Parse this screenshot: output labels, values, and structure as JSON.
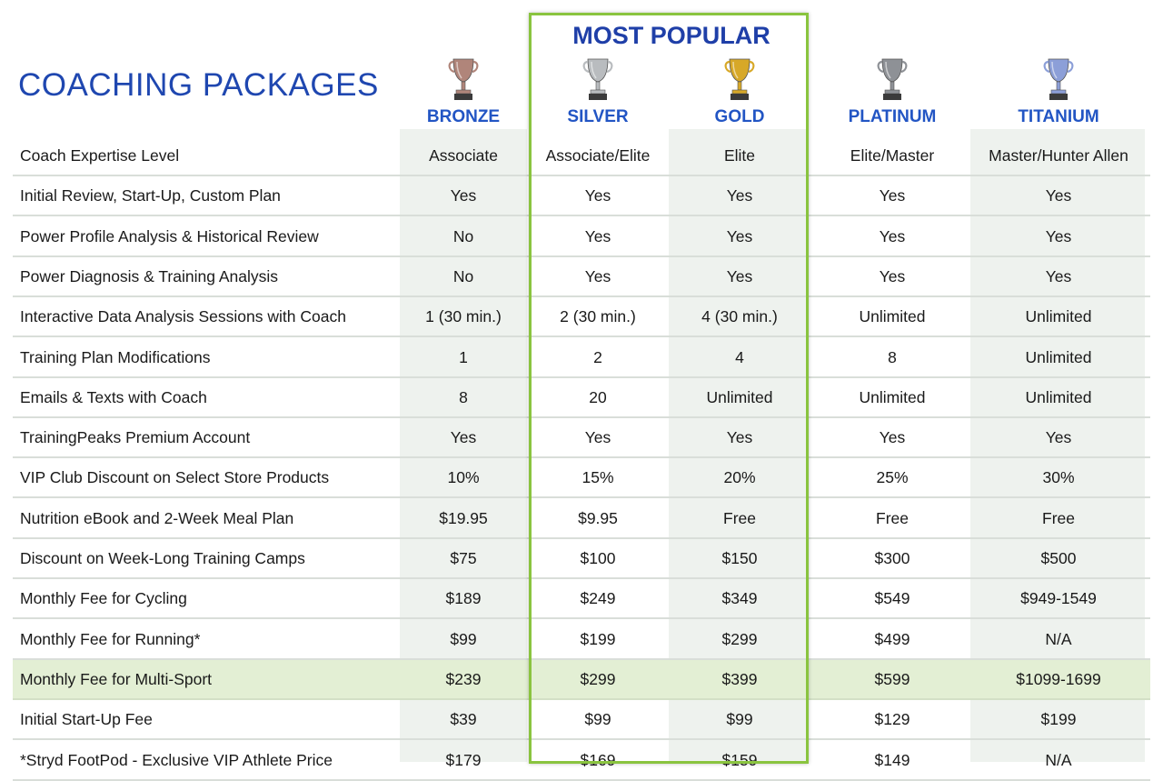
{
  "title": "COACHING PACKAGES",
  "most_popular": "MOST POPULAR",
  "colors": {
    "title": "#1f47b0",
    "tier_label": "#2255c4",
    "popular_border": "#8ac43f",
    "highlight_row": "#e3efd4",
    "column_shade": "#eef2ee"
  },
  "tiers": [
    {
      "name": "BRONZE",
      "icon": "bronze-trophy-icon",
      "color": "#b0857a"
    },
    {
      "name": "SILVER",
      "icon": "silver-trophy-icon",
      "color": "#b9bcbf"
    },
    {
      "name": "GOLD",
      "icon": "gold-trophy-icon",
      "color": "#d7a828"
    },
    {
      "name": "PLATINUM",
      "icon": "platinum-trophy-icon",
      "color": "#8e9196"
    },
    {
      "name": "TITANIUM",
      "icon": "titanium-trophy-icon",
      "color": "#8c9fd8"
    }
  ],
  "rows": [
    {
      "label": "Coach Expertise Level",
      "values": [
        "Associate",
        "Associate/Elite",
        "Elite",
        "Elite/Master",
        "Master/Hunter Allen"
      ]
    },
    {
      "label": "Initial Review, Start-Up, Custom Plan",
      "values": [
        "Yes",
        "Yes",
        "Yes",
        "Yes",
        "Yes"
      ]
    },
    {
      "label": "Power Profile Analysis & Historical Review",
      "values": [
        "No",
        "Yes",
        "Yes",
        "Yes",
        "Yes"
      ]
    },
    {
      "label": "Power Diagnosis & Training Analysis",
      "values": [
        "No",
        "Yes",
        "Yes",
        "Yes",
        "Yes"
      ]
    },
    {
      "label": "Interactive Data Analysis Sessions with Coach",
      "values": [
        "1 (30 min.)",
        "2 (30 min.)",
        "4 (30 min.)",
        "Unlimited",
        "Unlimited"
      ]
    },
    {
      "label": "Training Plan Modifications",
      "values": [
        "1",
        "2",
        "4",
        "8",
        "Unlimited"
      ]
    },
    {
      "label": "Emails & Texts with Coach",
      "values": [
        "8",
        "20",
        "Unlimited",
        "Unlimited",
        "Unlimited"
      ]
    },
    {
      "label": "TrainingPeaks Premium Account",
      "values": [
        "Yes",
        "Yes",
        "Yes",
        "Yes",
        "Yes"
      ]
    },
    {
      "label": "VIP Club Discount on Select Store Products",
      "values": [
        "10%",
        "15%",
        "20%",
        "25%",
        "30%"
      ]
    },
    {
      "label": "Nutrition eBook and 2-Week Meal Plan",
      "values": [
        "$19.95",
        "$9.95",
        "Free",
        "Free",
        "Free"
      ]
    },
    {
      "label": "Discount on Week-Long Training Camps",
      "values": [
        "$75",
        "$100",
        "$150",
        "$300",
        "$500"
      ]
    },
    {
      "label": "Monthly Fee for Cycling",
      "values": [
        "$189",
        "$249",
        "$349",
        "$549",
        "$949-1549"
      ]
    },
    {
      "label": "Monthly Fee for Running*",
      "values": [
        "$99",
        "$199",
        "$299",
        "$499",
        "N/A"
      ]
    },
    {
      "label": "Monthly Fee for Multi-Sport",
      "values": [
        "$239",
        "$299",
        "$399",
        "$599",
        "$1099-1699"
      ],
      "highlight": true
    },
    {
      "label": "Initial Start-Up Fee",
      "values": [
        "$39",
        "$99",
        "$99",
        "$129",
        "$199"
      ]
    },
    {
      "label": "*Stryd FootPod - Exclusive VIP Athlete Price",
      "values": [
        "$179",
        "$169",
        "$159",
        "$149",
        "N/A"
      ]
    }
  ]
}
